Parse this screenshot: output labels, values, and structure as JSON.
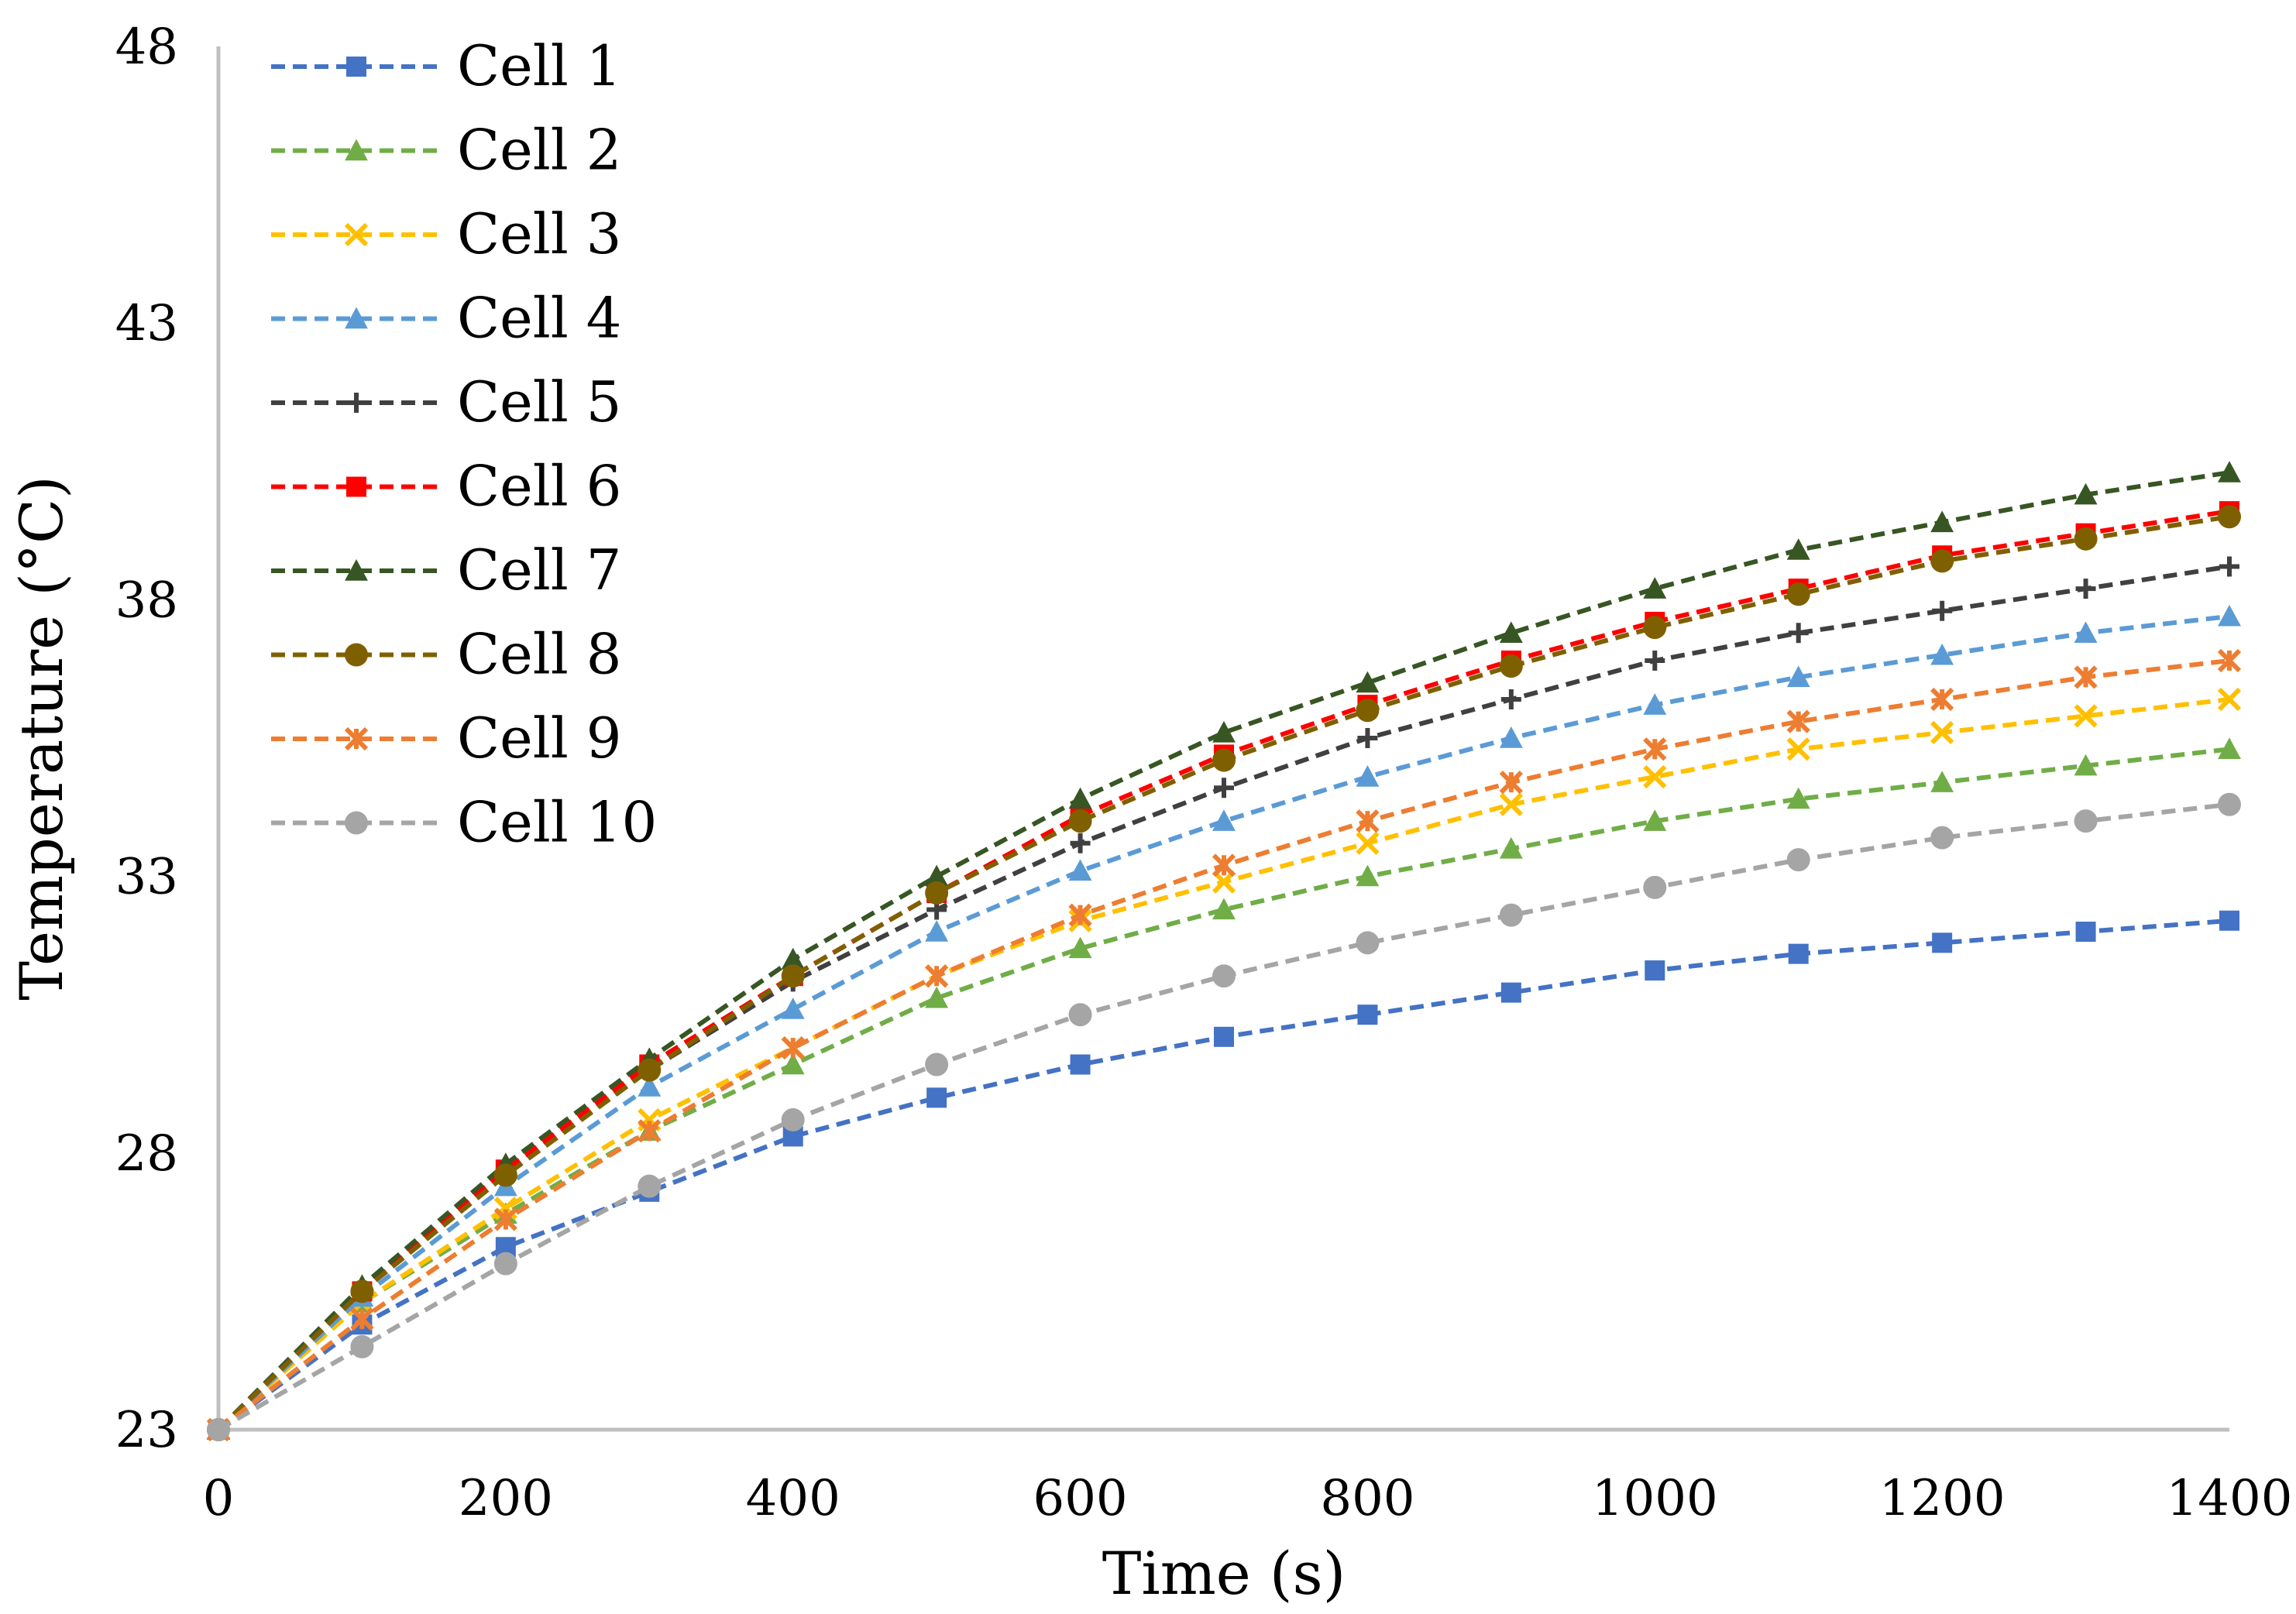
{
  "chart_data": {
    "type": "line",
    "title": "",
    "xlabel": "Time (s)",
    "ylabel": "Temperature (°C)",
    "xlim": [
      0,
      1400
    ],
    "ylim": [
      23,
      48
    ],
    "x_ticks": [
      "0",
      "200",
      "400",
      "600",
      "800",
      "1000",
      "1200",
      "1400"
    ],
    "y_ticks": [
      "23",
      "28",
      "33",
      "38",
      "43",
      "48"
    ],
    "grid": false,
    "legend_position": "top-left",
    "line_style": "dashed",
    "x": [
      0,
      100,
      200,
      300,
      400,
      500,
      600,
      700,
      800,
      900,
      1000,
      1100,
      1200,
      1300,
      1400
    ],
    "series": [
      {
        "name": "Cell 1",
        "color": "#4472C4",
        "marker": "square",
        "values": [
          23.0,
          24.9,
          26.3,
          27.3,
          28.3,
          29.0,
          29.6,
          30.1,
          30.5,
          30.9,
          31.3,
          31.6,
          31.8,
          32.0,
          32.2
        ]
      },
      {
        "name": "Cell 2",
        "color": "#70AD47",
        "marker": "triangle",
        "values": [
          23.0,
          25.3,
          26.9,
          28.4,
          29.6,
          30.8,
          31.7,
          32.4,
          33.0,
          33.5,
          34.0,
          34.4,
          34.7,
          35.0,
          35.3
        ]
      },
      {
        "name": "Cell 3",
        "color": "#FFC000",
        "marker": "x",
        "values": [
          23.0,
          25.3,
          27.0,
          28.6,
          29.9,
          31.2,
          32.2,
          32.9,
          33.6,
          34.3,
          34.8,
          35.3,
          35.6,
          35.9,
          36.2
        ]
      },
      {
        "name": "Cell 4",
        "color": "#5B9BD5",
        "marker": "triangle",
        "values": [
          23.0,
          25.4,
          27.4,
          29.2,
          30.6,
          32.0,
          33.1,
          34.0,
          34.8,
          35.5,
          36.1,
          36.6,
          37.0,
          37.4,
          37.7
        ]
      },
      {
        "name": "Cell 5",
        "color": "#404040",
        "marker": "plus",
        "values": [
          23.0,
          25.5,
          27.7,
          29.5,
          31.1,
          32.4,
          33.6,
          34.6,
          35.5,
          36.2,
          36.9,
          37.4,
          37.8,
          38.2,
          38.6
        ]
      },
      {
        "name": "Cell 6",
        "color": "#FF0000",
        "marker": "square",
        "values": [
          23.0,
          25.5,
          27.7,
          29.6,
          31.2,
          32.7,
          34.1,
          35.2,
          36.1,
          36.9,
          37.6,
          38.2,
          38.8,
          39.2,
          39.6
        ]
      },
      {
        "name": "Cell 7",
        "color": "#375623",
        "marker": "triangle",
        "values": [
          23.0,
          25.6,
          27.8,
          29.7,
          31.5,
          33.0,
          34.4,
          35.6,
          36.5,
          37.4,
          38.2,
          38.9,
          39.4,
          39.9,
          40.3
        ]
      },
      {
        "name": "Cell 8",
        "color": "#7F6000",
        "marker": "circle",
        "values": [
          23.0,
          25.5,
          27.6,
          29.5,
          31.2,
          32.7,
          34.0,
          35.1,
          36.0,
          36.8,
          37.5,
          38.1,
          38.7,
          39.1,
          39.5
        ]
      },
      {
        "name": "Cell 9",
        "color": "#ED7D31",
        "marker": "asterisk",
        "values": [
          23.0,
          25.0,
          26.8,
          28.4,
          29.9,
          31.2,
          32.3,
          33.2,
          34.0,
          34.7,
          35.3,
          35.8,
          36.2,
          36.6,
          36.9
        ]
      },
      {
        "name": "Cell 10",
        "color": "#A5A5A5",
        "marker": "circle",
        "values": [
          23.0,
          24.5,
          26.0,
          27.4,
          28.6,
          29.6,
          30.5,
          31.2,
          31.8,
          32.3,
          32.8,
          33.3,
          33.7,
          34.0,
          34.3
        ]
      }
    ]
  }
}
